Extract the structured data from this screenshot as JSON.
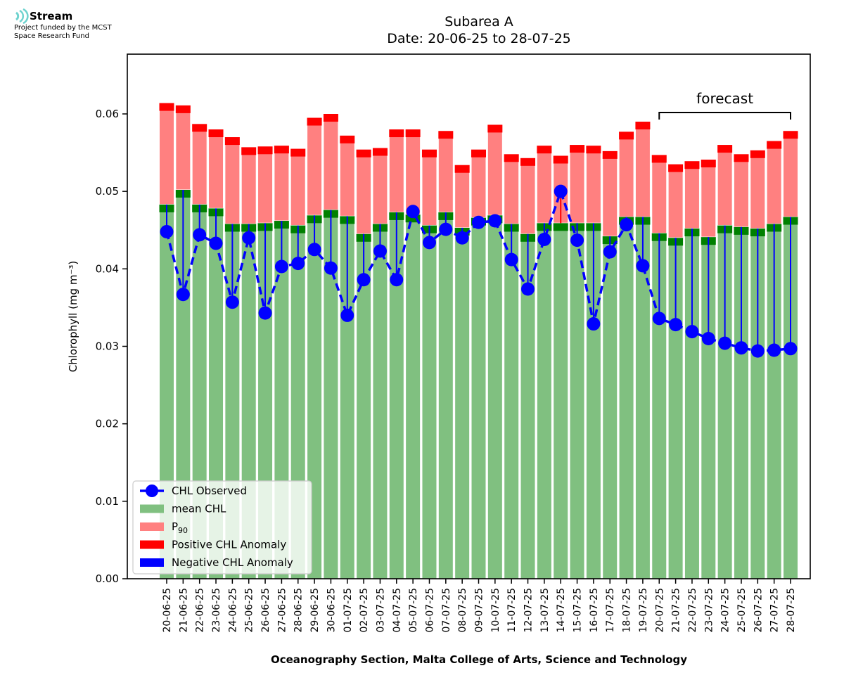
{
  "logo": {
    "brand": "Stream",
    "line1": "Project funded by the MCST",
    "line2": "Space Research Fund",
    "icon": "wave-signal-icon",
    "color": "#6fd3cf"
  },
  "chart_data": {
    "type": "bar",
    "title_line1": "Subarea A",
    "title_line2": "Date: 20-06-25 to 28-07-25",
    "xlabel": "Oceanography Section, Malta College of Arts, Science and Technology",
    "ylabel": "Chlorophyll (mg m⁻³)",
    "ylim": [
      0,
      0.0675
    ],
    "yticks": [
      "0.00",
      "0.01",
      "0.02",
      "0.03",
      "0.04",
      "0.05",
      "0.06"
    ],
    "ytick_values": [
      0,
      0.01,
      0.02,
      0.03,
      0.04,
      0.05,
      0.06
    ],
    "band_thickness": 0.001,
    "annotation": {
      "text": "forecast",
      "from": "20-07-25",
      "to": "28-07-25"
    },
    "legend": {
      "placement": "lower-left",
      "entries": [
        {
          "label": "CHL Observed",
          "kind": "line-marker",
          "color": "#0000ff"
        },
        {
          "label": "mean CHL",
          "kind": "patch",
          "color": "#80c080"
        },
        {
          "label": "P",
          "sub": "90",
          "kind": "patch",
          "color": "#ff8080"
        },
        {
          "label": "Positive CHL Anomaly",
          "kind": "patch",
          "color": "#ff0000"
        },
        {
          "label": "Negative CHL Anomaly",
          "kind": "patch",
          "color": "#0000ff"
        }
      ]
    },
    "colors": {
      "mean": "#80c080",
      "mean_band": "#008000",
      "p90": "#ff8080",
      "p90_band": "#ff0000",
      "observed": "#0000ff",
      "positive": "#ff0000",
      "negative": "#0000ff"
    },
    "categories": [
      "20-06-25",
      "21-06-25",
      "22-06-25",
      "23-06-25",
      "24-06-25",
      "25-06-25",
      "26-06-25",
      "27-06-25",
      "28-06-25",
      "29-06-25",
      "30-06-25",
      "01-07-25",
      "02-07-25",
      "03-07-25",
      "04-07-25",
      "05-07-25",
      "06-07-25",
      "07-07-25",
      "08-07-25",
      "09-07-25",
      "10-07-25",
      "11-07-25",
      "12-07-25",
      "13-07-25",
      "14-07-25",
      "15-07-25",
      "16-07-25",
      "17-07-25",
      "18-07-25",
      "19-07-25",
      "20-07-25",
      "21-07-25",
      "22-07-25",
      "23-07-25",
      "24-07-25",
      "25-07-25",
      "26-07-25",
      "27-07-25",
      "28-07-25"
    ],
    "series": [
      {
        "name": "mean CHL",
        "values": [
          0.0473,
          0.0492,
          0.0473,
          0.0468,
          0.0448,
          0.0448,
          0.0449,
          0.0452,
          0.0446,
          0.0459,
          0.0466,
          0.0458,
          0.0435,
          0.0448,
          0.0463,
          0.046,
          0.0446,
          0.0463,
          0.0443,
          0.0456,
          0.0459,
          0.0448,
          0.0435,
          0.0449,
          0.0449,
          0.0449,
          0.0449,
          0.0432,
          0.0457,
          0.0457,
          0.0436,
          0.043,
          0.0442,
          0.0431,
          0.0446,
          0.0444,
          0.0442,
          0.0448,
          0.0457
        ]
      },
      {
        "name": "P90",
        "values": [
          0.0604,
          0.0601,
          0.0577,
          0.057,
          0.056,
          0.0547,
          0.0548,
          0.0549,
          0.0545,
          0.0585,
          0.059,
          0.0562,
          0.0544,
          0.0546,
          0.057,
          0.057,
          0.0544,
          0.0568,
          0.0524,
          0.0544,
          0.0576,
          0.0538,
          0.0533,
          0.0549,
          0.0536,
          0.055,
          0.0549,
          0.0542,
          0.0567,
          0.058,
          0.0537,
          0.0525,
          0.0529,
          0.0531,
          0.055,
          0.0538,
          0.0543,
          0.0555,
          0.0568
        ]
      },
      {
        "name": "CHL Observed",
        "values": [
          0.0448,
          0.0367,
          0.0444,
          0.0433,
          0.0357,
          0.044,
          0.0343,
          0.0403,
          0.0407,
          0.0425,
          0.0401,
          0.034,
          0.0386,
          0.0423,
          0.0386,
          0.0474,
          0.0434,
          0.0451,
          0.044,
          0.046,
          0.0462,
          0.0412,
          0.0374,
          0.0438,
          0.05,
          0.0437,
          0.0329,
          0.0422,
          0.0457,
          0.0404,
          0.0336,
          0.0328,
          0.0319,
          0.031,
          0.0304,
          0.0298,
          0.0294,
          0.0295,
          0.0297
        ]
      }
    ]
  }
}
